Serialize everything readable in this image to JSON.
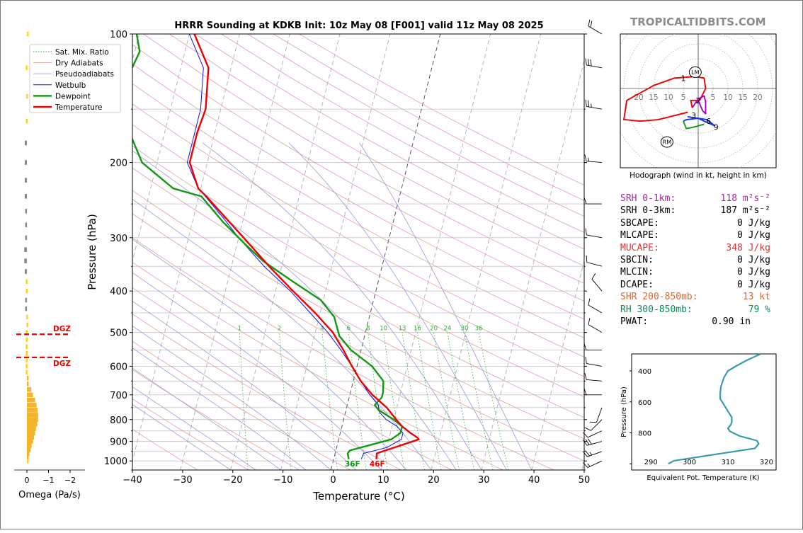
{
  "brand": "TROPICALTIDBITS.COM",
  "chart_data": [
    {
      "type": "line",
      "title": "HRRR Sounding at KDKB Init: 10z May 08 [F001] valid 11z May 08 2025",
      "xlabel": "Temperature (°C)",
      "ylabel": "Pressure (hPa)",
      "xlim": [
        -40,
        50
      ],
      "ylim": [
        1050,
        100
      ],
      "y_log": true,
      "skew": true,
      "x_ticks": [
        "−40",
        "−30",
        "−20",
        "−10",
        "0",
        "10",
        "20",
        "30",
        "40",
        "50"
      ],
      "y_ticks": [
        "100",
        "200",
        "300",
        "400",
        "500",
        "600",
        "700",
        "800",
        "900",
        "1000"
      ],
      "mixing_ratio_labels": [
        "1",
        "2",
        "4",
        "6",
        "8",
        "10",
        "13",
        "16",
        "20",
        "24",
        "30",
        "36"
      ],
      "legend": [
        "Sat. Mix. Ratio",
        "Dry Adiabats",
        "Pseudoadiabats",
        "Wetbulb",
        "Dewpoint",
        "Temperature"
      ],
      "legend_position": "top-left",
      "surface_labels": {
        "dewpoint": "36F",
        "temperature": "46F"
      },
      "colors": {
        "temperature": "#ee0000",
        "dewpoint": "#119911",
        "wetbulb": "#1111ee"
      },
      "series": [
        {
          "name": "Temperature",
          "p": [
            990,
            960,
            930,
            890,
            880,
            860,
            830,
            800,
            750,
            700,
            650,
            600,
            550,
            500,
            450,
            400,
            350,
            300,
            270,
            240,
            230,
            200,
            170,
            150,
            120,
            100
          ],
          "t": [
            8.5,
            8.3,
            11.5,
            16,
            15.5,
            14,
            12,
            10.5,
            8,
            4.5,
            1.5,
            -1,
            -3.5,
            -6.5,
            -11,
            -16.5,
            -22.5,
            -29,
            -33.5,
            -38.5,
            -40.5,
            -43.5,
            -43.5,
            -43,
            -44.5,
            -49
          ]
        },
        {
          "name": "Dewpoint",
          "p": [
            990,
            960,
            945,
            890,
            860,
            830,
            800,
            760,
            740,
            710,
            690,
            650,
            600,
            550,
            510,
            460,
            420,
            380,
            340,
            310,
            275,
            240,
            230,
            200,
            170,
            150,
            110,
            100
          ],
          "t": [
            3,
            2.5,
            2.8,
            10.5,
            12,
            12,
            10,
            6.5,
            5.5,
            6.5,
            6.5,
            6,
            3,
            -2,
            -5,
            -7,
            -10.5,
            -17,
            -24,
            -28.5,
            -34,
            -39.5,
            -45.5,
            -53,
            -57,
            -61.5,
            -59,
            -60.5
          ]
        },
        {
          "name": "Wetbulb",
          "p": [
            990,
            960,
            930,
            890,
            860,
            830,
            800,
            770,
            740,
            700,
            650,
            600,
            550,
            500,
            450,
            400,
            350,
            300,
            270,
            240,
            230,
            200,
            170,
            150,
            120,
            100
          ],
          "t": [
            5.5,
            5.7,
            10,
            12.5,
            12.5,
            11,
            8.5,
            6.8,
            6.2,
            4,
            1.5,
            -1,
            -4,
            -7.5,
            -12,
            -17,
            -23.5,
            -30,
            -34,
            -38.7,
            -40.5,
            -44,
            -44,
            -44,
            -45.5,
            -50
          ]
        }
      ],
      "wind_barbs": [
        {
          "p": 1000,
          "dir": 245,
          "kt": 15
        },
        {
          "p": 950,
          "dir": 250,
          "kt": 25
        },
        {
          "p": 900,
          "dir": 255,
          "kt": 30
        },
        {
          "p": 850,
          "dir": 245,
          "kt": 10
        },
        {
          "p": 800,
          "dir": 225,
          "kt": 10
        },
        {
          "p": 750,
          "dir": 200,
          "kt": 10
        },
        {
          "p": 700,
          "dir": 270,
          "kt": 10
        },
        {
          "p": 650,
          "dir": 275,
          "kt": 10
        },
        {
          "p": 600,
          "dir": 280,
          "kt": 10
        },
        {
          "p": 550,
          "dir": 270,
          "kt": 10
        },
        {
          "p": 500,
          "dir": 300,
          "kt": 10
        },
        {
          "p": 450,
          "dir": 300,
          "kt": 10
        },
        {
          "p": 400,
          "dir": 320,
          "kt": 10
        },
        {
          "p": 350,
          "dir": 285,
          "kt": 10
        },
        {
          "p": 300,
          "dir": 280,
          "kt": 10
        },
        {
          "p": 250,
          "dir": 270,
          "kt": 10
        },
        {
          "p": 200,
          "dir": 275,
          "kt": 15
        },
        {
          "p": 150,
          "dir": 280,
          "kt": 25
        },
        {
          "p": 120,
          "dir": 280,
          "kt": 30
        },
        {
          "p": 100,
          "dir": 300,
          "kt": 20
        }
      ]
    },
    {
      "type": "bar",
      "xlabel": "Omega (Pa/s)",
      "x_ticks": [
        "0",
        "−1",
        "−2"
      ],
      "xlim": [
        0,
        -2.4
      ],
      "dgz_label": "DGZ",
      "dgz_pressures": [
        505,
        572
      ],
      "p": [
        100,
        120,
        140,
        160,
        180,
        200,
        220,
        240,
        260,
        280,
        300,
        320,
        340,
        360,
        380,
        400,
        420,
        440,
        460,
        480,
        500,
        520,
        540,
        560,
        580,
        600,
        620,
        640,
        660,
        680,
        700,
        720,
        740,
        760,
        780,
        800,
        820,
        840,
        860,
        880,
        900,
        920,
        940,
        960,
        980,
        1000
      ],
      "omega": [
        0.0,
        0.05,
        0.03,
        0.05,
        0.1,
        0.1,
        0.1,
        0.1,
        0.08,
        0.08,
        0.08,
        0.12,
        0.12,
        0.1,
        0.05,
        0.05,
        0.08,
        0.08,
        0.03,
        0.02,
        0.05,
        0.05,
        0.05,
        0.05,
        0.05,
        0.05,
        0.05,
        -0.02,
        -0.08,
        -0.2,
        -0.28,
        -0.38,
        -0.45,
        -0.5,
        -0.52,
        -0.52,
        -0.48,
        -0.42,
        -0.38,
        -0.33,
        -0.28,
        -0.22,
        -0.18,
        -0.12,
        -0.05,
        0.0
      ]
    },
    {
      "type": "line",
      "caption": "Hodograph (wind in kt, height in km)",
      "ring_labels": [
        "20",
        "15",
        "10",
        "5",
        "5",
        "10",
        "15",
        "20"
      ],
      "markers": [
        "LM",
        "RM"
      ],
      "marker_pos": {
        "LM": [
          -1,
          5.5
        ],
        "RM": [
          -10.5,
          -18
        ]
      },
      "height_labels": [
        "1",
        "2",
        "3",
        "6",
        "9"
      ],
      "height_pos": [
        [
          -5,
          3.5
        ],
        [
          0,
          -4
        ],
        [
          -1.5,
          -9
        ],
        [
          3.5,
          -11
        ],
        [
          6,
          -13
        ]
      ],
      "segments": [
        {
          "color": "#ee0000",
          "u": [
            -3.5,
            -13.5,
            -19.5,
            -24.5,
            -25,
            -24,
            -15,
            -8,
            -1,
            2,
            2.5,
            0.5,
            -2.5,
            -2
          ],
          "v": [
            -8,
            -10.5,
            -11,
            -10.5,
            -10.5,
            -4,
            1,
            3.5,
            4,
            3.5,
            0,
            -4,
            -4,
            -6.5
          ]
        },
        {
          "color": "#aa00cc",
          "u": [
            -2,
            0,
            2,
            2.5,
            2.5,
            1.5,
            0
          ],
          "v": [
            -6.5,
            -3.5,
            -2.5,
            -4.5,
            -8.5,
            -7.5,
            -4
          ]
        },
        {
          "color": "#1133ee",
          "u": [
            -5,
            -4,
            0,
            2,
            5.5,
            3,
            -3.5
          ],
          "v": [
            -11,
            -10.5,
            -10,
            -11,
            -12.5,
            -10.5,
            -9.5
          ]
        },
        {
          "color": "#119911",
          "u": [
            -5,
            -4,
            -1.5,
            2
          ],
          "v": [
            -11,
            -13.5,
            -13,
            -12
          ]
        }
      ]
    },
    {
      "type": "line",
      "xlabel": "Equivalent Pot. Temperature (K)",
      "ylabel": "Pressure (hPa)",
      "x_ticks": [
        "290",
        "300",
        "310",
        "320"
      ],
      "y_ticks": [
        "400",
        "600",
        "800"
      ],
      "xlim": [
        285,
        322.5
      ],
      "ylim": [
        1040,
        290
      ],
      "color": "#3a9aae",
      "theta_e": [
        294.5,
        296,
        317,
        318,
        317.5,
        313,
        310.5,
        310,
        310.7,
        311,
        311,
        310,
        309,
        308,
        308,
        308.2,
        309,
        310,
        312,
        315,
        318.5
      ],
      "p": [
        1000,
        980,
        900,
        870,
        850,
        820,
        790,
        770,
        750,
        730,
        700,
        660,
        620,
        580,
        540,
        500,
        440,
        400,
        370,
        330,
        290
      ]
    }
  ],
  "stats": [
    {
      "label": "SRH 0-1km:",
      "value": "118 m²s⁻²",
      "color": "#aa22aa"
    },
    {
      "label": "SRH 0-3km:",
      "value": "187 m²s⁻²",
      "color": "#000000"
    },
    {
      "label": "SBCAPE:",
      "value": "0 J/kg",
      "color": "#000000"
    },
    {
      "label": "MLCAPE:",
      "value": "0 J/kg",
      "color": "#000000"
    },
    {
      "label": "MUCAPE:",
      "value": "348 J/kg",
      "color": "#dd3333"
    },
    {
      "label": "SBCIN:",
      "value": "0 J/kg",
      "color": "#000000"
    },
    {
      "label": "MLCIN:",
      "value": "0 J/kg",
      "color": "#000000"
    },
    {
      "label": "DCAPE:",
      "value": "0 J/kg",
      "color": "#000000"
    },
    {
      "label": "SHR 200-850mb:",
      "value": "13 kt",
      "color": "#dd6633"
    },
    {
      "label": "RH 300-850mb:",
      "value": "79 %",
      "color": "#118855"
    },
    {
      "label": "PWAT:",
      "value": "0.90 in",
      "color": "#000000"
    }
  ]
}
